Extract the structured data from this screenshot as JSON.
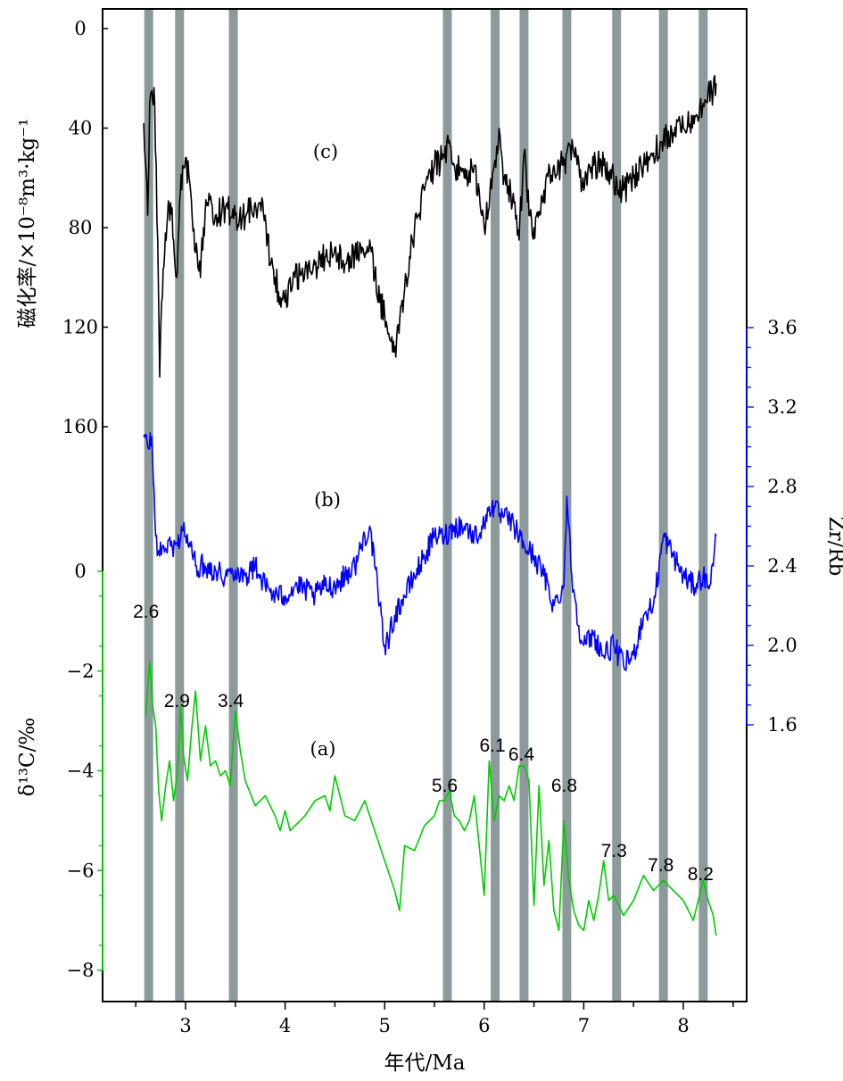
{
  "chart_data": {
    "type": "line",
    "x_axis": {
      "label": "年代/Ma",
      "range": [
        2.15,
        8.65
      ],
      "major_ticks": [
        3,
        4,
        5,
        6,
        7,
        8
      ],
      "minor_step": 0.5,
      "tick_labels": [
        "3",
        "4",
        "5",
        "6",
        "7",
        "8"
      ]
    },
    "y_left_top": {
      "label": "磁化率/×10⁻⁸m³·kg⁻¹",
      "range": [
        0,
        180
      ],
      "reversed": true,
      "ticks": [
        0,
        40,
        80,
        120,
        160
      ],
      "tick_labels": [
        "0",
        "40",
        "80",
        "120",
        "160"
      ]
    },
    "y_left_bottom": {
      "label": "δ¹³C/‰",
      "range": [
        -8.6,
        0
      ],
      "ticks": [
        0,
        -2,
        -4,
        -6,
        -8
      ],
      "tick_labels": [
        "0",
        "−2",
        "−4",
        "−6",
        "−8"
      ],
      "color": "#00cc00"
    },
    "y_right": {
      "label": "Zr/Rb",
      "range": [
        1.5,
        3.6
      ],
      "ticks": [
        1.6,
        2.0,
        2.4,
        2.8,
        3.2,
        3.6
      ],
      "tick_labels": [
        "1.6",
        "2.0",
        "2.4",
        "2.8",
        "3.2",
        "3.6"
      ],
      "minor_step": 0.1,
      "color": "#0000ff"
    },
    "band_color": "#8c9a9c",
    "bands": [
      {
        "x": 2.63,
        "label": "2.6"
      },
      {
        "x": 2.94,
        "label": "2.9"
      },
      {
        "x": 3.48,
        "label": "3.4"
      },
      {
        "x": 5.63,
        "label": "5.6"
      },
      {
        "x": 6.11,
        "label": "6.1"
      },
      {
        "x": 6.4,
        "label": "6.4"
      },
      {
        "x": 6.83,
        "label": "6.8"
      },
      {
        "x": 7.33,
        "label": "7.3"
      },
      {
        "x": 7.8,
        "label": "7.8"
      },
      {
        "x": 8.2,
        "label": "8.2"
      }
    ],
    "series": [
      {
        "panel": "(c)",
        "color": "#000000",
        "axis": "y_left_top",
        "x": [
          2.58,
          2.62,
          2.64,
          2.66,
          2.69,
          2.72,
          2.74,
          2.76,
          2.79,
          2.82,
          2.85,
          2.88,
          2.91,
          2.94,
          2.97,
          3.0,
          3.05,
          3.1,
          3.15,
          3.18,
          3.22,
          3.3,
          3.4,
          3.5,
          3.6,
          3.7,
          3.8,
          3.85,
          3.9,
          3.95,
          4.0,
          4.1,
          4.2,
          4.3,
          4.4,
          4.5,
          4.6,
          4.7,
          4.8,
          4.85,
          4.9,
          4.95,
          5.0,
          5.05,
          5.08,
          5.12,
          5.2,
          5.3,
          5.4,
          5.5,
          5.6,
          5.65,
          5.7,
          5.8,
          5.9,
          6.0,
          6.1,
          6.15,
          6.2,
          6.3,
          6.35,
          6.4,
          6.45,
          6.5,
          6.6,
          6.7,
          6.8,
          6.83,
          6.9,
          7.0,
          7.1,
          7.2,
          7.3,
          7.35,
          7.4,
          7.5,
          7.6,
          7.7,
          7.8,
          7.9,
          8.0,
          8.1,
          8.2,
          8.3,
          8.33
        ],
        "values": [
          38,
          75,
          30,
          25,
          30,
          85,
          140,
          110,
          90,
          75,
          70,
          85,
          100,
          70,
          55,
          52,
          65,
          90,
          100,
          80,
          70,
          75,
          72,
          75,
          76,
          70,
          75,
          95,
          100,
          108,
          110,
          100,
          97,
          95,
          92,
          88,
          95,
          90,
          92,
          85,
          100,
          110,
          115,
          125,
          130,
          125,
          105,
          80,
          65,
          55,
          52,
          45,
          55,
          60,
          55,
          80,
          55,
          40,
          60,
          70,
          85,
          50,
          75,
          80,
          65,
          55,
          55,
          50,
          50,
          65,
          55,
          55,
          60,
          65,
          65,
          60,
          55,
          50,
          45,
          42,
          40,
          35,
          30,
          25,
          22
        ],
        "y_axis_range": [
          0,
          180
        ]
      },
      {
        "panel": "(b)",
        "color": "#0000ff",
        "axis": "y_right",
        "x": [
          2.58,
          2.62,
          2.66,
          2.7,
          2.74,
          2.78,
          2.85,
          2.92,
          2.96,
          3.0,
          3.05,
          3.1,
          3.2,
          3.3,
          3.4,
          3.5,
          3.6,
          3.7,
          3.8,
          3.9,
          4.0,
          4.1,
          4.2,
          4.3,
          4.4,
          4.5,
          4.6,
          4.7,
          4.8,
          4.85,
          4.9,
          4.95,
          5.0,
          5.05,
          5.1,
          5.2,
          5.3,
          5.4,
          5.5,
          5.6,
          5.7,
          5.8,
          5.9,
          6.0,
          6.05,
          6.1,
          6.15,
          6.2,
          6.3,
          6.4,
          6.5,
          6.6,
          6.7,
          6.8,
          6.83,
          6.88,
          6.95,
          7.0,
          7.1,
          7.2,
          7.3,
          7.4,
          7.5,
          7.55,
          7.6,
          7.7,
          7.8,
          7.9,
          8.0,
          8.1,
          8.2,
          8.25,
          8.3,
          8.33
        ],
        "values": [
          3.05,
          3.0,
          3.05,
          2.55,
          2.45,
          2.5,
          2.5,
          2.5,
          2.6,
          2.55,
          2.5,
          2.4,
          2.4,
          2.38,
          2.35,
          2.38,
          2.35,
          2.4,
          2.3,
          2.25,
          2.25,
          2.3,
          2.28,
          2.25,
          2.3,
          2.3,
          2.35,
          2.4,
          2.55,
          2.6,
          2.4,
          2.2,
          2.0,
          2.05,
          2.15,
          2.25,
          2.35,
          2.45,
          2.55,
          2.55,
          2.6,
          2.6,
          2.55,
          2.6,
          2.7,
          2.7,
          2.65,
          2.65,
          2.6,
          2.5,
          2.45,
          2.35,
          2.2,
          2.3,
          2.75,
          2.35,
          2.1,
          2.0,
          2.05,
          1.95,
          2.0,
          1.9,
          1.95,
          2.05,
          2.15,
          2.2,
          2.55,
          2.45,
          2.35,
          2.3,
          2.35,
          2.3,
          2.4,
          2.55
        ],
        "y_axis_range": [
          1.5,
          3.6
        ]
      },
      {
        "panel": "(a)",
        "color": "#00cc00",
        "axis": "y_left_bottom",
        "x": [
          2.6,
          2.64,
          2.67,
          2.7,
          2.73,
          2.76,
          2.8,
          2.84,
          2.88,
          2.92,
          2.95,
          2.98,
          3.02,
          3.06,
          3.1,
          3.15,
          3.2,
          3.25,
          3.3,
          3.35,
          3.4,
          3.45,
          3.5,
          3.55,
          3.6,
          3.7,
          3.8,
          3.9,
          3.95,
          4.0,
          4.05,
          4.1,
          4.2,
          4.3,
          4.4,
          4.45,
          4.5,
          4.6,
          4.7,
          4.8,
          4.9,
          5.0,
          5.1,
          5.15,
          5.2,
          5.3,
          5.4,
          5.5,
          5.55,
          5.6,
          5.65,
          5.7,
          5.75,
          5.8,
          5.85,
          5.9,
          6.0,
          6.05,
          6.1,
          6.15,
          6.2,
          6.25,
          6.3,
          6.35,
          6.4,
          6.45,
          6.5,
          6.55,
          6.6,
          6.65,
          6.7,
          6.75,
          6.8,
          6.85,
          6.9,
          6.95,
          7.0,
          7.05,
          7.1,
          7.15,
          7.2,
          7.25,
          7.3,
          7.35,
          7.4,
          7.5,
          7.6,
          7.7,
          7.8,
          7.9,
          8.0,
          8.1,
          8.2,
          8.25,
          8.3,
          8.33
        ],
        "values": [
          -2.9,
          -1.8,
          -2.7,
          -3.1,
          -4.4,
          -5.0,
          -4.3,
          -3.8,
          -4.6,
          -4.0,
          -2.7,
          -3.7,
          -4.2,
          -3.2,
          -2.4,
          -3.8,
          -3.1,
          -3.9,
          -3.8,
          -4.1,
          -4.0,
          -4.3,
          -2.8,
          -3.6,
          -4.2,
          -4.7,
          -4.5,
          -4.9,
          -5.2,
          -4.8,
          -5.2,
          -5.1,
          -4.9,
          -4.6,
          -4.5,
          -4.8,
          -4.1,
          -4.9,
          -5.0,
          -4.6,
          -5.2,
          -5.8,
          -6.4,
          -6.8,
          -5.5,
          -5.6,
          -5.1,
          -4.9,
          -4.6,
          -4.6,
          -4.4,
          -4.9,
          -5.0,
          -5.2,
          -5.0,
          -4.5,
          -6.5,
          -3.8,
          -5.0,
          -4.5,
          -4.6,
          -4.3,
          -4.6,
          -3.9,
          -3.9,
          -4.2,
          -6.7,
          -4.3,
          -6.3,
          -5.4,
          -6.8,
          -7.2,
          -5.0,
          -6.2,
          -6.8,
          -7.1,
          -7.2,
          -6.6,
          -7.0,
          -6.5,
          -5.8,
          -6.6,
          -6.5,
          -6.7,
          -6.9,
          -6.6,
          -6.1,
          -6.4,
          -6.2,
          -6.4,
          -6.6,
          -7.0,
          -6.2,
          -6.6,
          -6.9,
          -7.3
        ],
        "y_axis_range": [
          -8.6,
          0
        ]
      }
    ],
    "panel_labels": [
      "(c)",
      "(b)",
      "(a)"
    ]
  },
  "icons": {}
}
